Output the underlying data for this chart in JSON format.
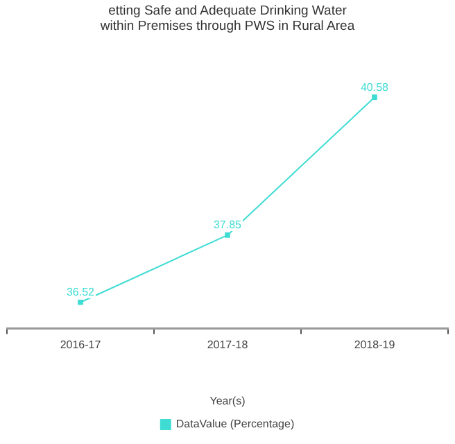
{
  "chart_data": {
    "type": "line",
    "title": "etting Safe and Adequate Drinking Water within Premises through PWS in Rural Area",
    "xlabel": "Year(s)",
    "categories": [
      "2016-17",
      "2017-18",
      "2018-19"
    ],
    "series": [
      {
        "name": "DataValue (Percentage)",
        "color": "#3fdcd4",
        "values": [
          36.52,
          37.85,
          40.58
        ]
      }
    ],
    "data_labels": true,
    "legend": "bottom",
    "marker": "square",
    "tick_labels": "x",
    "grid": false
  }
}
